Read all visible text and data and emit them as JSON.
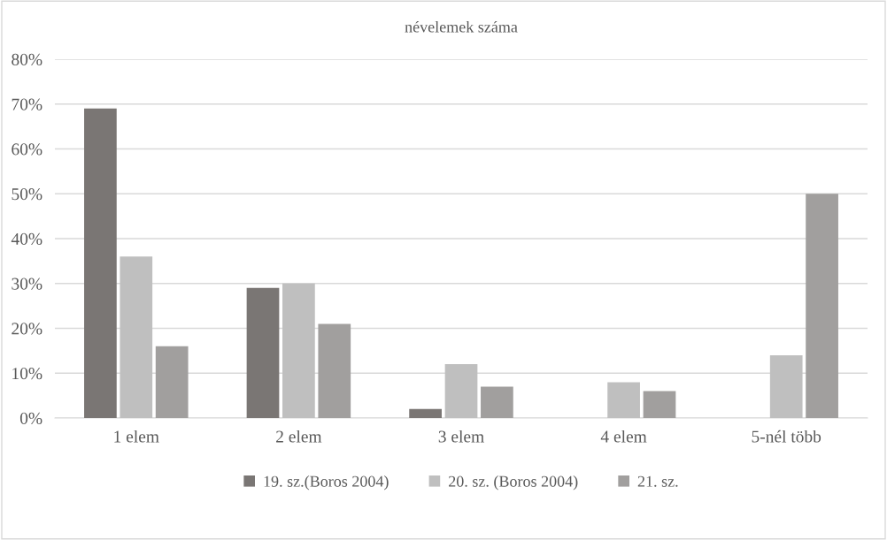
{
  "chart_data": {
    "type": "bar",
    "title": "névelemek száma",
    "categories": [
      "1 elem",
      "2 elem",
      "3 elem",
      "4 elem",
      "5-nél több"
    ],
    "series": [
      {
        "name": "19. sz.(Boros 2004)",
        "color": "#7a7674",
        "values": [
          69,
          29,
          2,
          0,
          0
        ]
      },
      {
        "name": "20. sz. (Boros 2004)",
        "color": "#bfbfbf",
        "values": [
          36,
          30,
          12,
          8,
          14
        ]
      },
      {
        "name": "21. sz.",
        "color": "#a19f9e",
        "values": [
          16,
          21,
          7,
          6,
          50
        ]
      }
    ],
    "ylim": [
      0,
      80
    ],
    "yticks": [
      {
        "value": 0,
        "label": "0%"
      },
      {
        "value": 10,
        "label": "10%"
      },
      {
        "value": 20,
        "label": "20%"
      },
      {
        "value": 30,
        "label": "30%"
      },
      {
        "value": 40,
        "label": "40%"
      },
      {
        "value": 50,
        "label": "50%"
      },
      {
        "value": 60,
        "label": "60%"
      },
      {
        "value": 70,
        "label": "70%"
      },
      {
        "value": 80,
        "label": "80%"
      }
    ],
    "grid": "y",
    "legend": "bottom"
  }
}
